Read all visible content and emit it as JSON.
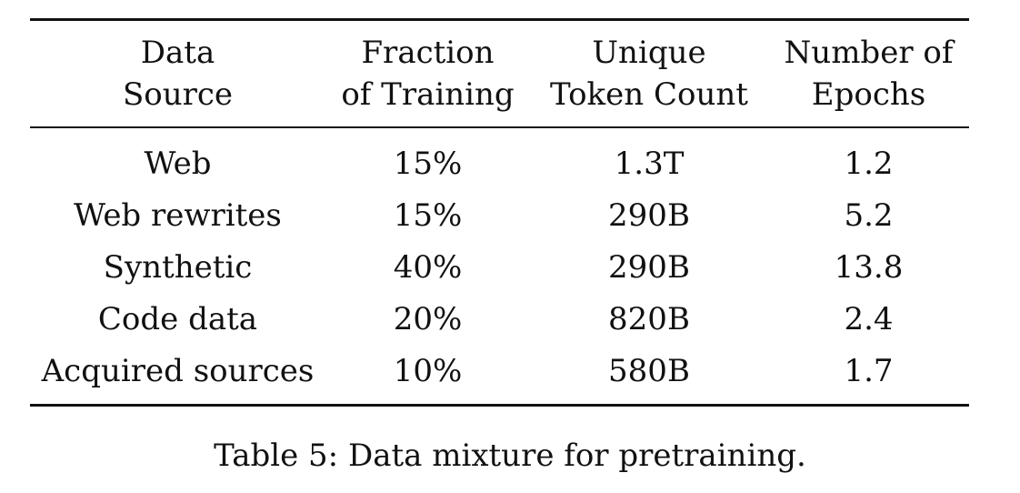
{
  "table": {
    "headers": [
      [
        "Data",
        "Source"
      ],
      [
        "Fraction",
        "of Training"
      ],
      [
        "Unique",
        "Token Count"
      ],
      [
        "Number of",
        "Epochs"
      ]
    ],
    "rows": [
      [
        "Web",
        "15%",
        "1.3T",
        "1.2"
      ],
      [
        "Web rewrites",
        "15%",
        "290B",
        "5.2"
      ],
      [
        "Synthetic",
        "40%",
        "290B",
        "13.8"
      ],
      [
        "Code data",
        "20%",
        "820B",
        "2.4"
      ],
      [
        "Acquired sources",
        "10%",
        "580B",
        "1.7"
      ]
    ]
  },
  "caption": "Table 5: Data mixture for pretraining."
}
